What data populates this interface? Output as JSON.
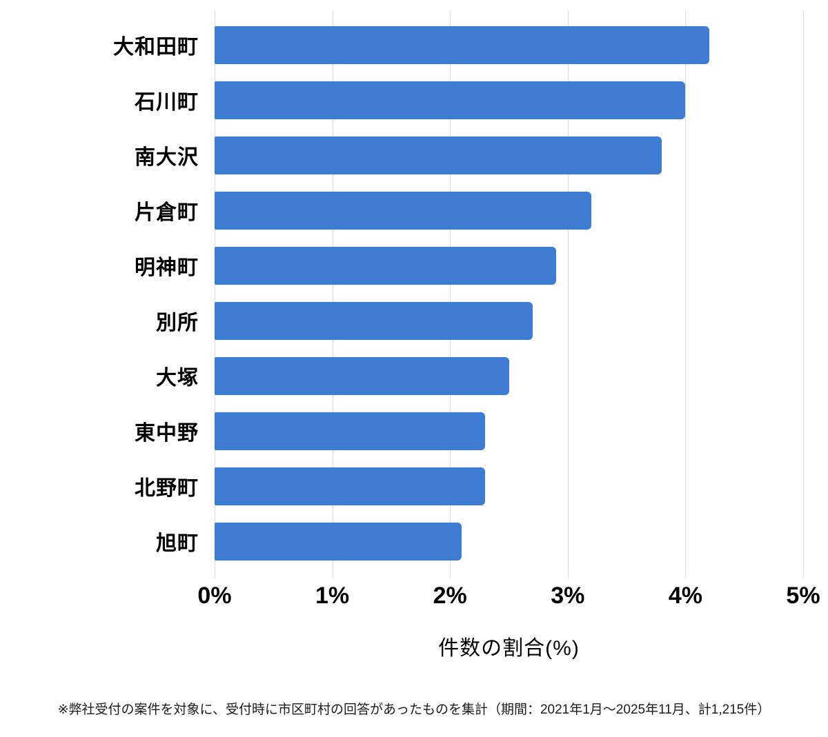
{
  "chart_data": {
    "type": "bar",
    "orientation": "horizontal",
    "categories": [
      "大和田町",
      "石川町",
      "南大沢",
      "片倉町",
      "明神町",
      "別所",
      "大塚",
      "東中野",
      "北野町",
      "旭町"
    ],
    "values": [
      4.2,
      4.0,
      3.8,
      3.2,
      2.9,
      2.7,
      2.5,
      2.3,
      2.3,
      2.1
    ],
    "value_unit": "%",
    "xlabel": "件数の割合(%)",
    "x_ticks": [
      "0%",
      "1%",
      "2%",
      "3%",
      "4%",
      "5%"
    ],
    "x_tick_values": [
      0,
      1,
      2,
      3,
      4,
      5
    ],
    "xlim": [
      0,
      5
    ],
    "grid": true,
    "legend": "none",
    "bar_color": "#3e7bd3",
    "gridline_color": "#dcdcdc",
    "footnote": "※弊社受付の案件を対象に、受付時に市区町村の回答があったものを集計（期間：2021年1月～2025年11月、計1,215件）"
  }
}
